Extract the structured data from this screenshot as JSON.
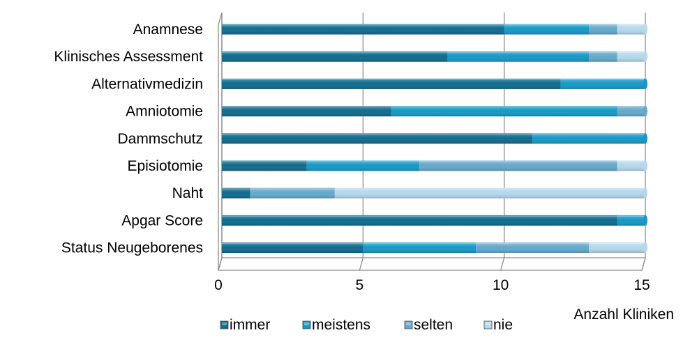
{
  "chart_data": {
    "type": "bar",
    "orientation": "horizontal",
    "stacked": true,
    "style": "3d",
    "categories": [
      "Anamnese",
      "Klinisches Assessment",
      "Alternativmedizin",
      "Amniotomie",
      "Dammschutz",
      "Episiotomie",
      "Naht",
      "Apgar Score",
      "Status Neugeborenes"
    ],
    "series": [
      {
        "name": "immer",
        "color": "#0f6b8e",
        "values": [
          10,
          8,
          12,
          6,
          11,
          3,
          1,
          14,
          5
        ]
      },
      {
        "name": "meistens",
        "color": "#1698c6",
        "values": [
          3,
          5,
          3,
          8,
          4,
          4,
          0,
          1,
          4
        ]
      },
      {
        "name": "selten",
        "color": "#63a9cc",
        "values": [
          1,
          1,
          0,
          1,
          0,
          7,
          3,
          0,
          4
        ]
      },
      {
        "name": "nie",
        "color": "#b5d8ec",
        "values": [
          1,
          1,
          0,
          0,
          0,
          1,
          11,
          0,
          2
        ]
      }
    ],
    "x_ticks": [
      "0",
      "5",
      "10",
      "15"
    ],
    "xlim": [
      0,
      15
    ],
    "xlabel": "Anzahl Kliniken",
    "ylabel": "",
    "title": "",
    "grid": true,
    "legend_position": "bottom"
  }
}
